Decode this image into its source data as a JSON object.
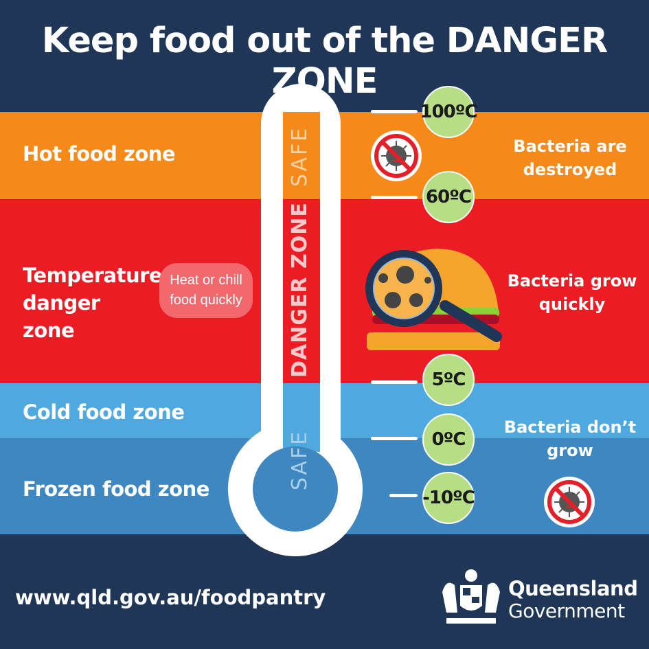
{
  "title": "Keep food out of the DANGER ZONE",
  "zones": [
    {
      "label": "Hot food zone",
      "color": "#f5891a"
    },
    {
      "label": "Temperature danger zone",
      "color": "#ec1c24"
    },
    {
      "label": "Cold food zone",
      "color": "#4fa9df"
    },
    {
      "label": "Frozen food zone",
      "color": "#3e87c0"
    }
  ],
  "thermometer": {
    "top_label": "SAFE",
    "middle_label": "DANGER ZONE",
    "bottom_label": "SAFE"
  },
  "tip": "Heat or chill food quickly",
  "temperatures": [
    "100ºC",
    "60ºC",
    "5ºC",
    "0ºC",
    "-10ºC"
  ],
  "notes": {
    "hot": "Bacteria are destroyed",
    "danger": "Bacteria grow quickly",
    "cold": "Bacteria don’t grow"
  },
  "icons": [
    "no-bacteria-icon",
    "burger-magnifier-icon",
    "no-bacteria-icon",
    "queensland-crest-icon"
  ],
  "footer": {
    "url": "www.qld.gov.au/foodpantry",
    "logo_line1": "Queensland",
    "logo_line2": "Government"
  }
}
